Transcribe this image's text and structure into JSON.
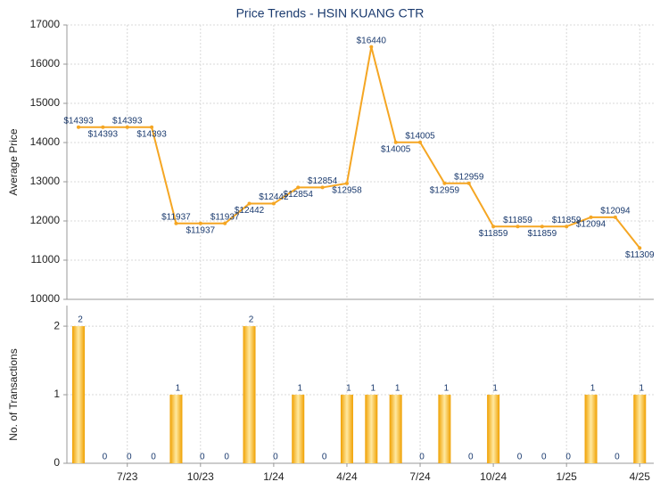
{
  "chart_data": [
    {
      "type": "line",
      "title": "Price Trends - HSIN KUANG CTR",
      "ylabel": "Average Price",
      "values": [
        14393,
        14393,
        14393,
        14393,
        11937,
        11937,
        11937,
        12442,
        12442,
        12854,
        12854,
        12958,
        16440,
        14005,
        14005,
        12959,
        12959,
        11859,
        11859,
        11859,
        11859,
        12094,
        12094,
        11309
      ],
      "value_labels": [
        "$14393",
        "$14393",
        "$14393",
        "$14393",
        "$11937",
        "$11937",
        "$11937",
        "$12442",
        "$12442",
        "$12854",
        "$12854",
        "$12958",
        "$16440",
        "$14005",
        "$14005",
        "$12959",
        "$12959",
        "$11859",
        "$11859",
        "$11859",
        "$11859",
        "$12094",
        "$12094",
        "$11309"
      ],
      "color": "#f5a623",
      "ylim": [
        10000,
        17000
      ],
      "yticks": [
        10000,
        11000,
        12000,
        13000,
        14000,
        15000,
        16000,
        17000
      ],
      "grid": true
    },
    {
      "type": "bar",
      "ylabel": "No. of Transactions",
      "categories": [
        null,
        null,
        "7/23",
        null,
        null,
        "10/23",
        null,
        null,
        "1/24",
        null,
        null,
        "4/24",
        null,
        null,
        "7/24",
        null,
        null,
        "10/24",
        null,
        null,
        "1/25",
        null,
        null,
        "4/25"
      ],
      "values": [
        2,
        0,
        0,
        0,
        1,
        0,
        0,
        2,
        0,
        1,
        0,
        1,
        1,
        1,
        0,
        1,
        0,
        1,
        0,
        0,
        0,
        1,
        0,
        1
      ],
      "color": "#f0a000",
      "ylim": [
        0,
        2.3
      ],
      "yticks": [
        0,
        1,
        2
      ],
      "grid": true
    }
  ]
}
